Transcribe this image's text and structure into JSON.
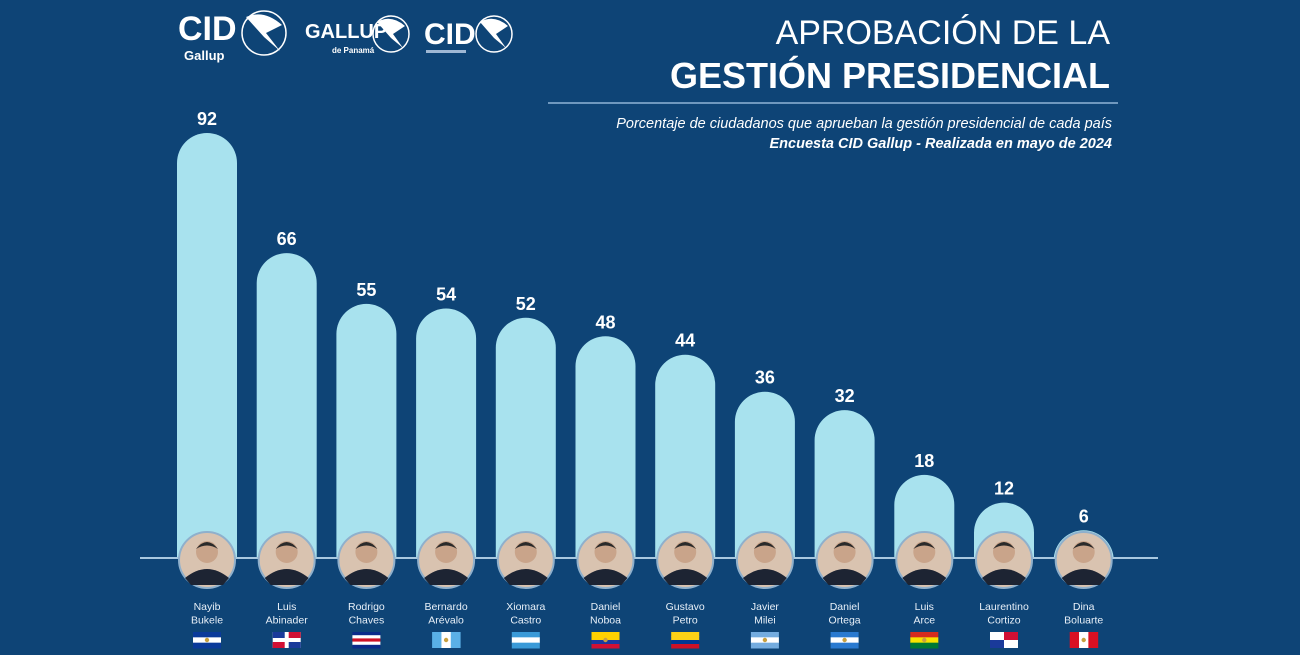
{
  "logos": [
    {
      "main": "CID",
      "sub": "Gallup"
    },
    {
      "main": "GALLUP",
      "sub": "de Panamá"
    },
    {
      "main": "CID",
      "sub": ""
    }
  ],
  "colors": {
    "background": "#0e4476",
    "bar": "#a8e2ee",
    "text": "#ffffff",
    "baseline": "#a8c8e0"
  },
  "chart_data": {
    "type": "bar",
    "title_line1": "APROBACIÓN DE LA",
    "title_line2": "GESTIÓN PRESIDENCIAL",
    "subtitle": "Porcentaje de ciudadanos que aprueban la gestión presidencial de cada país",
    "source": "Encuesta CID Gallup - Realizada en mayo de 2024",
    "xlabel": "",
    "ylabel": "",
    "ylim": [
      0,
      92
    ],
    "grid": false,
    "categories": [
      {
        "first": "Nayib",
        "last": "Bukele"
      },
      {
        "first": "Luis",
        "last": "Abinader"
      },
      {
        "first": "Rodrigo",
        "last": "Chaves"
      },
      {
        "first": "Bernardo",
        "last": "Arévalo"
      },
      {
        "first": "Xiomara",
        "last": "Castro"
      },
      {
        "first": "Daniel",
        "last": "Noboa"
      },
      {
        "first": "Gustavo",
        "last": "Petro"
      },
      {
        "first": "Javier",
        "last": "Milei"
      },
      {
        "first": "Daniel",
        "last": "Ortega"
      },
      {
        "first": "Luis",
        "last": "Arce"
      },
      {
        "first": "Laurentino",
        "last": "Cortizo"
      },
      {
        "first": "Dina",
        "last": "Boluarte"
      }
    ],
    "values": [
      92,
      66,
      55,
      54,
      52,
      48,
      44,
      36,
      32,
      18,
      12,
      6
    ],
    "flags": [
      [
        "#0a3a9a",
        "#ffffff",
        "#0a3a9a"
      ],
      [
        "#1a3a9a",
        "#ffffff",
        "#d21034"
      ],
      [
        "#0a2a8a",
        "#ffffff",
        "#ce1126",
        "#ffffff",
        "#0a2a8a"
      ],
      [
        "#5ab0e6",
        "#ffffff",
        "#5ab0e6"
      ],
      [
        "#3a9ad8",
        "#ffffff",
        "#3a9ad8"
      ],
      [
        "#ffd100",
        "#ffd100",
        "#1a3aa0",
        "#d21034"
      ],
      [
        "#fcd116",
        "#fcd116",
        "#003893",
        "#ce1126"
      ],
      [
        "#74acdf",
        "#ffffff",
        "#74acdf"
      ],
      [
        "#2a7ad0",
        "#ffffff",
        "#2a7ad0"
      ],
      [
        "#d52b1e",
        "#f9e300",
        "#007934"
      ],
      [
        "#ffffff",
        "#d21034",
        "#1a3a9a",
        "#ffffff"
      ],
      [
        "#d91023",
        "#ffffff",
        "#d91023"
      ]
    ]
  }
}
